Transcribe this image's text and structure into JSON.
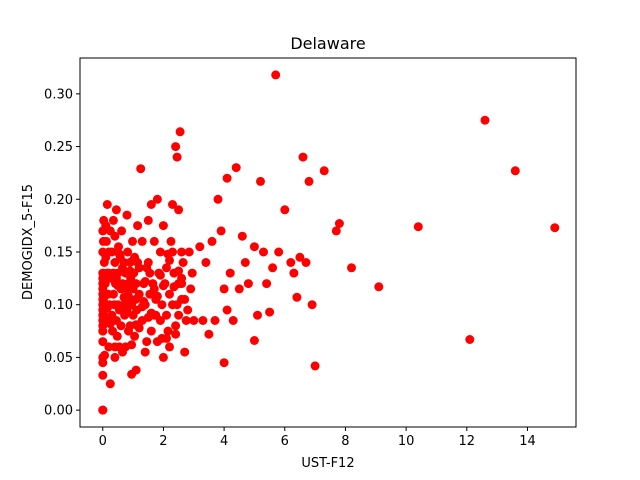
{
  "chart_data": {
    "type": "scatter",
    "title": "Delaware",
    "xlabel": "UST-F12",
    "ylabel": "DEMOGIDX_5-F15",
    "xlim": [
      -0.75,
      15.6
    ],
    "ylim": [
      -0.016,
      0.334
    ],
    "xticks": [
      0,
      2,
      4,
      6,
      8,
      10,
      12,
      14
    ],
    "yticks": [
      0.0,
      0.05,
      0.1,
      0.15,
      0.2,
      0.25,
      0.3
    ],
    "ytick_labels": [
      "0.00",
      "0.05",
      "0.10",
      "0.15",
      "0.20",
      "0.25",
      "0.30"
    ],
    "grid": false,
    "marker_color": "#ff0000",
    "series": [
      {
        "x": [
          0.0,
          0.0,
          0.0,
          0.0,
          0.0,
          0.0,
          0.0,
          0.0,
          0.0,
          0.0,
          0.0,
          0.0,
          0.0,
          0.0,
          0.0,
          0.0,
          0.0,
          0.0,
          0.0,
          0.0,
          0.02,
          0.02,
          0.03,
          0.05,
          0.05,
          0.06,
          0.08,
          0.1,
          0.1,
          0.12,
          0.15,
          0.15,
          0.15,
          0.18,
          0.2,
          0.2,
          0.22,
          0.25,
          0.25,
          0.28,
          0.3,
          0.3,
          0.32,
          0.35,
          0.35,
          0.35,
          0.38,
          0.4,
          0.4,
          0.4,
          0.42,
          0.45,
          0.45,
          0.48,
          0.5,
          0.5,
          0.52,
          0.55,
          0.55,
          0.58,
          0.6,
          0.6,
          0.62,
          0.65,
          0.65,
          0.7,
          0.7,
          0.72,
          0.75,
          0.75,
          0.78,
          0.8,
          0.8,
          0.82,
          0.85,
          0.85,
          0.88,
          0.9,
          0.9,
          0.92,
          0.95,
          0.95,
          0.98,
          1.0,
          1.0,
          1.02,
          1.05,
          1.05,
          1.08,
          1.1,
          1.1,
          1.12,
          1.15,
          1.2,
          1.2,
          1.25,
          1.3,
          1.3,
          1.35,
          1.4,
          1.4,
          1.45,
          1.5,
          1.5,
          1.55,
          1.6,
          1.6,
          1.65,
          1.7,
          1.7,
          1.75,
          1.8,
          1.8,
          1.85,
          1.9,
          1.9,
          1.95,
          2.0,
          2.0,
          2.05,
          2.1,
          2.1,
          2.15,
          2.2,
          2.2,
          2.25,
          2.3,
          2.3,
          2.35,
          2.4,
          2.4,
          2.45,
          2.5,
          2.5,
          2.55,
          2.6,
          2.6,
          2.65,
          2.7,
          2.75,
          2.8,
          2.85,
          2.9,
          2.95,
          3.0,
          3.2,
          3.4,
          3.5,
          3.6,
          3.7,
          3.8,
          3.9,
          4.0,
          4.0,
          4.1,
          4.2,
          4.3,
          4.4,
          4.5,
          4.6,
          4.7,
          4.8,
          5.0,
          5.1,
          5.2,
          5.3,
          5.4,
          5.5,
          5.7,
          5.8,
          6.0,
          6.2,
          6.3,
          6.4,
          6.6,
          6.7,
          6.8,
          6.9,
          7.0,
          7.3,
          7.7,
          7.8,
          8.2,
          9.1,
          10.4,
          12.1,
          12.6,
          13.6,
          14.9,
          0.05,
          0.1,
          0.2,
          0.3,
          0.45,
          0.55,
          0.7,
          0.9,
          1.1,
          1.3,
          1.5,
          1.7,
          1.9,
          2.1,
          2.3,
          2.5,
          0.15,
          0.4,
          0.65,
          0.85,
          1.0,
          1.2,
          1.4,
          1.6,
          1.8,
          2.0,
          2.2,
          2.4,
          2.6,
          0.25,
          0.5,
          0.75,
          0.95,
          1.15,
          1.35,
          1.55,
          1.75,
          1.95,
          2.15,
          2.35,
          2.5,
          2.6,
          2.7,
          3.3,
          4.1,
          5.0,
          5.6,
          6.5,
          1.45,
          2.45
        ],
        "y": [
          0.0,
          0.0,
          0.033,
          0.045,
          0.05,
          0.065,
          0.075,
          0.08,
          0.085,
          0.09,
          0.095,
          0.1,
          0.105,
          0.11,
          0.115,
          0.12,
          0.125,
          0.13,
          0.15,
          0.17,
          0.16,
          0.105,
          0.18,
          0.09,
          0.14,
          0.052,
          0.12,
          0.175,
          0.098,
          0.16,
          0.13,
          0.085,
          0.195,
          0.11,
          0.06,
          0.15,
          0.1,
          0.025,
          0.17,
          0.125,
          0.09,
          0.15,
          0.075,
          0.11,
          0.18,
          0.13,
          0.1,
          0.05,
          0.165,
          0.14,
          0.12,
          0.085,
          0.19,
          0.07,
          0.13,
          0.1,
          0.155,
          0.095,
          0.06,
          0.145,
          0.115,
          0.08,
          0.17,
          0.12,
          0.055,
          0.1,
          0.14,
          0.09,
          0.13,
          0.06,
          0.115,
          0.185,
          0.095,
          0.15,
          0.075,
          0.12,
          0.105,
          0.14,
          0.08,
          0.125,
          0.034,
          0.1,
          0.16,
          0.115,
          0.09,
          0.13,
          0.07,
          0.145,
          0.105,
          0.12,
          0.038,
          0.095,
          0.175,
          0.135,
          0.11,
          0.229,
          0.16,
          0.085,
          0.12,
          0.055,
          0.1,
          0.065,
          0.14,
          0.18,
          0.11,
          0.075,
          0.195,
          0.12,
          0.09,
          0.16,
          0.105,
          0.065,
          0.2,
          0.13,
          0.085,
          0.15,
          0.1,
          0.05,
          0.175,
          0.12,
          0.09,
          0.135,
          0.075,
          0.11,
          0.06,
          0.16,
          0.1,
          0.195,
          0.13,
          0.08,
          0.25,
          0.24,
          0.12,
          0.09,
          0.264,
          0.15,
          0.105,
          0.14,
          0.055,
          0.085,
          0.095,
          0.15,
          0.115,
          0.13,
          0.085,
          0.155,
          0.14,
          0.072,
          0.16,
          0.085,
          0.2,
          0.17,
          0.045,
          0.115,
          0.22,
          0.13,
          0.085,
          0.23,
          0.115,
          0.165,
          0.14,
          0.12,
          0.066,
          0.09,
          0.217,
          0.15,
          0.12,
          0.093,
          0.318,
          0.15,
          0.19,
          0.14,
          0.13,
          0.107,
          0.24,
          0.14,
          0.217,
          0.1,
          0.042,
          0.227,
          0.17,
          0.177,
          0.135,
          0.117,
          0.174,
          0.067,
          0.275,
          0.227,
          0.173,
          0.11,
          0.145,
          0.13,
          0.088,
          0.125,
          0.148,
          0.107,
          0.132,
          0.081,
          0.098,
          0.088,
          0.115,
          0.128,
          0.068,
          0.15,
          0.132,
          0.097,
          0.06,
          0.135,
          0.108,
          0.142,
          0.078,
          0.122,
          0.092,
          0.108,
          0.118,
          0.142,
          0.072,
          0.12,
          0.082,
          0.118,
          0.098,
          0.062,
          0.14,
          0.103,
          0.13,
          0.09,
          0.068,
          0.148,
          0.117,
          0.19,
          0.125,
          0.105,
          0.085,
          0.095,
          0.155,
          0.135,
          0.145,
          0.135,
          0.1
        ]
      }
    ]
  }
}
